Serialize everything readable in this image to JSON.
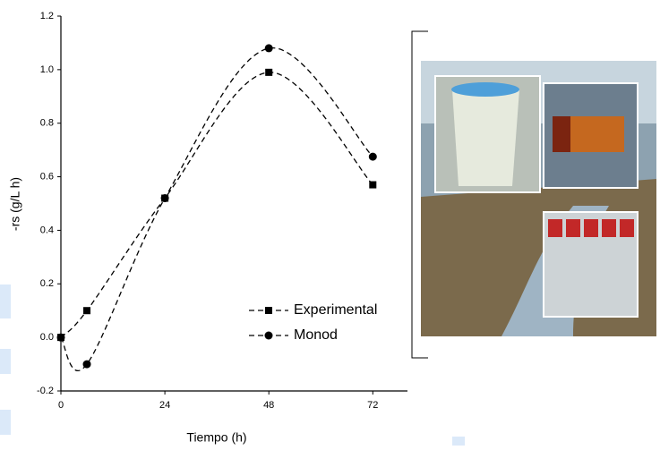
{
  "chart_data": {
    "type": "line",
    "x_label": "Tiempo (h)",
    "y_label": "-rs (g/L h)",
    "x": [
      0,
      6,
      24,
      48,
      72
    ],
    "series": [
      {
        "name": "Experimental",
        "color": "#000000",
        "marker": "square",
        "values": [
          0,
          0.1,
          0.52,
          0.99,
          0.57
        ]
      },
      {
        "name": "Monod",
        "color": "#000000",
        "marker": "circle",
        "values": [
          0,
          -0.1,
          0.52,
          1.08,
          0.675
        ]
      }
    ],
    "xlim": [
      0,
      80
    ],
    "xticks": [
      0,
      24,
      48,
      72
    ],
    "ylim": [
      -0.2,
      1.2
    ],
    "yticks": [
      -0.2,
      {
        "value": 0,
        "label": "0.0"
      },
      0.2,
      0.4,
      0.6,
      0.8,
      {
        "value": 1,
        "label": "1.0"
      },
      1.2
    ],
    "grid": false
  }
}
